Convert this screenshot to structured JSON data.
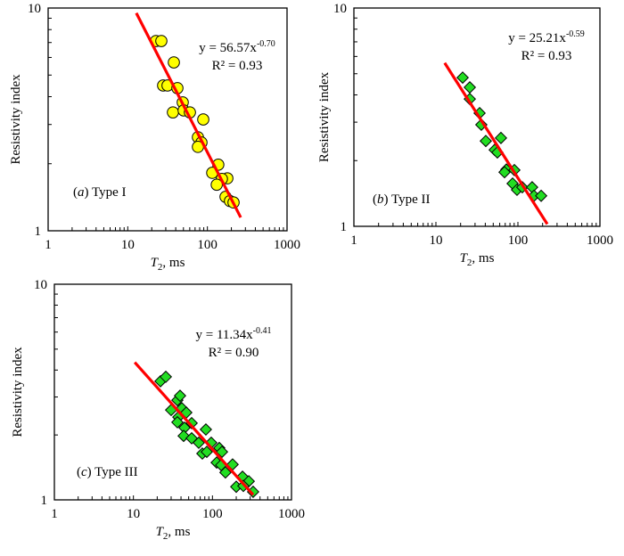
{
  "chart_data": [
    {
      "type": "scatter",
      "id": "a",
      "panel_label_letter": "a",
      "panel_label_text": "Type I",
      "xlabel_main": "T",
      "xlabel_sub": "2",
      "xlabel_rest": ", ms",
      "ylabel": "Resistivity index",
      "xscale": "log",
      "yscale": "log",
      "xlim": [
        1,
        1000
      ],
      "ylim": [
        1,
        10
      ],
      "x_ticks": [
        "1",
        "10",
        "100",
        "1000"
      ],
      "y_ticks": [
        "1",
        "10"
      ],
      "marker": "circle",
      "marker_color": "#ffff00",
      "line_color": "#ff0000",
      "equation_prefix": "y = 56.57x",
      "equation_exponent": "-0.70",
      "r2_text": "R² = 0.93",
      "fit": {
        "a": 56.57,
        "b": -0.7,
        "x_range": [
          12.8,
          262
        ]
      },
      "points": [
        [
          22.6,
          7.11
        ],
        [
          26.4,
          7.11
        ],
        [
          37.9,
          5.7
        ],
        [
          27.8,
          4.49
        ],
        [
          31.6,
          4.49
        ],
        [
          42.0,
          4.37
        ],
        [
          49.0,
          3.77
        ],
        [
          36.9,
          3.4
        ],
        [
          50.3,
          3.47
        ],
        [
          60.3,
          3.4
        ],
        [
          88.7,
          3.16
        ],
        [
          76.0,
          2.63
        ],
        [
          84.2,
          2.49
        ],
        [
          76.0,
          2.38
        ],
        [
          137,
          1.98
        ],
        [
          115,
          1.82
        ],
        [
          178,
          1.72
        ],
        [
          152,
          1.71
        ],
        [
          131,
          1.61
        ],
        [
          169,
          1.42
        ],
        [
          192,
          1.36
        ],
        [
          213,
          1.34
        ]
      ]
    },
    {
      "type": "scatter",
      "id": "b",
      "panel_label_letter": "b",
      "panel_label_text": "Type II",
      "xlabel_main": "T",
      "xlabel_sub": "2",
      "xlabel_rest": ", ms",
      "ylabel": "Resistivity index",
      "xscale": "log",
      "yscale": "log",
      "xlim": [
        1,
        1000
      ],
      "ylim": [
        1,
        10
      ],
      "x_ticks": [
        "1",
        "10",
        "100",
        "1000"
      ],
      "y_ticks": [
        "1",
        "10"
      ],
      "marker": "diamond",
      "marker_color": "#22dd22",
      "line_color": "#ff0000",
      "equation_prefix": "y = 25.21x",
      "equation_exponent": "-0.59",
      "r2_text": "R² = 0.93",
      "fit": {
        "a": 25.21,
        "b": -0.59,
        "x_range": [
          12.8,
          228
        ]
      },
      "points": [
        [
          21.2,
          4.8
        ],
        [
          25.9,
          4.33
        ],
        [
          25.9,
          3.83
        ],
        [
          34.1,
          3.3
        ],
        [
          35.8,
          2.92
        ],
        [
          40.6,
          2.46
        ],
        [
          62.1,
          2.54
        ],
        [
          52.1,
          2.24
        ],
        [
          56.2,
          2.18
        ],
        [
          72.3,
          1.82
        ],
        [
          68.7,
          1.77
        ],
        [
          90.5,
          1.81
        ],
        [
          86.1,
          1.57
        ],
        [
          97.5,
          1.47
        ],
        [
          113,
          1.51
        ],
        [
          149,
          1.51
        ],
        [
          157,
          1.38
        ],
        [
          192,
          1.38
        ]
      ]
    },
    {
      "type": "scatter",
      "id": "c",
      "panel_label_letter": "c",
      "panel_label_text": "Type III",
      "xlabel_main": "T",
      "xlabel_sub": "2",
      "xlabel_rest": ", ms",
      "ylabel": "Resistivity index",
      "xscale": "log",
      "yscale": "log",
      "xlim": [
        1,
        1000
      ],
      "ylim": [
        1,
        10
      ],
      "x_ticks": [
        "1",
        "10",
        "100",
        "1000"
      ],
      "y_ticks": [
        "1",
        "10"
      ],
      "marker": "diamond",
      "marker_color": "#22dd22",
      "line_color": "#ff0000",
      "equation_prefix": "y = 11.34x",
      "equation_exponent": "-0.41",
      "r2_text": "R² = 0.90",
      "fit": {
        "a": 11.34,
        "b": -0.41,
        "x_range": [
          10.4,
          327
        ]
      },
      "points": [
        [
          22.0,
          3.55
        ],
        [
          25.7,
          3.72
        ],
        [
          36.0,
          2.9
        ],
        [
          38.9,
          3.04
        ],
        [
          30.0,
          2.61
        ],
        [
          41.0,
          2.66
        ],
        [
          46.7,
          2.54
        ],
        [
          37.0,
          2.42
        ],
        [
          36.0,
          2.29
        ],
        [
          44.3,
          2.16
        ],
        [
          54.6,
          2.27
        ],
        [
          43.2,
          1.98
        ],
        [
          54.6,
          1.93
        ],
        [
          67.1,
          1.84
        ],
        [
          82.6,
          2.12
        ],
        [
          74.5,
          1.64
        ],
        [
          84.8,
          1.67
        ],
        [
          96.5,
          1.84
        ],
        [
          122,
          1.74
        ],
        [
          132,
          1.67
        ],
        [
          113,
          1.49
        ],
        [
          129,
          1.45
        ],
        [
          180,
          1.46
        ],
        [
          146,
          1.34
        ],
        [
          200,
          1.15
        ],
        [
          240,
          1.28
        ],
        [
          288,
          1.22
        ],
        [
          246,
          1.16
        ],
        [
          327,
          1.09
        ]
      ]
    }
  ]
}
